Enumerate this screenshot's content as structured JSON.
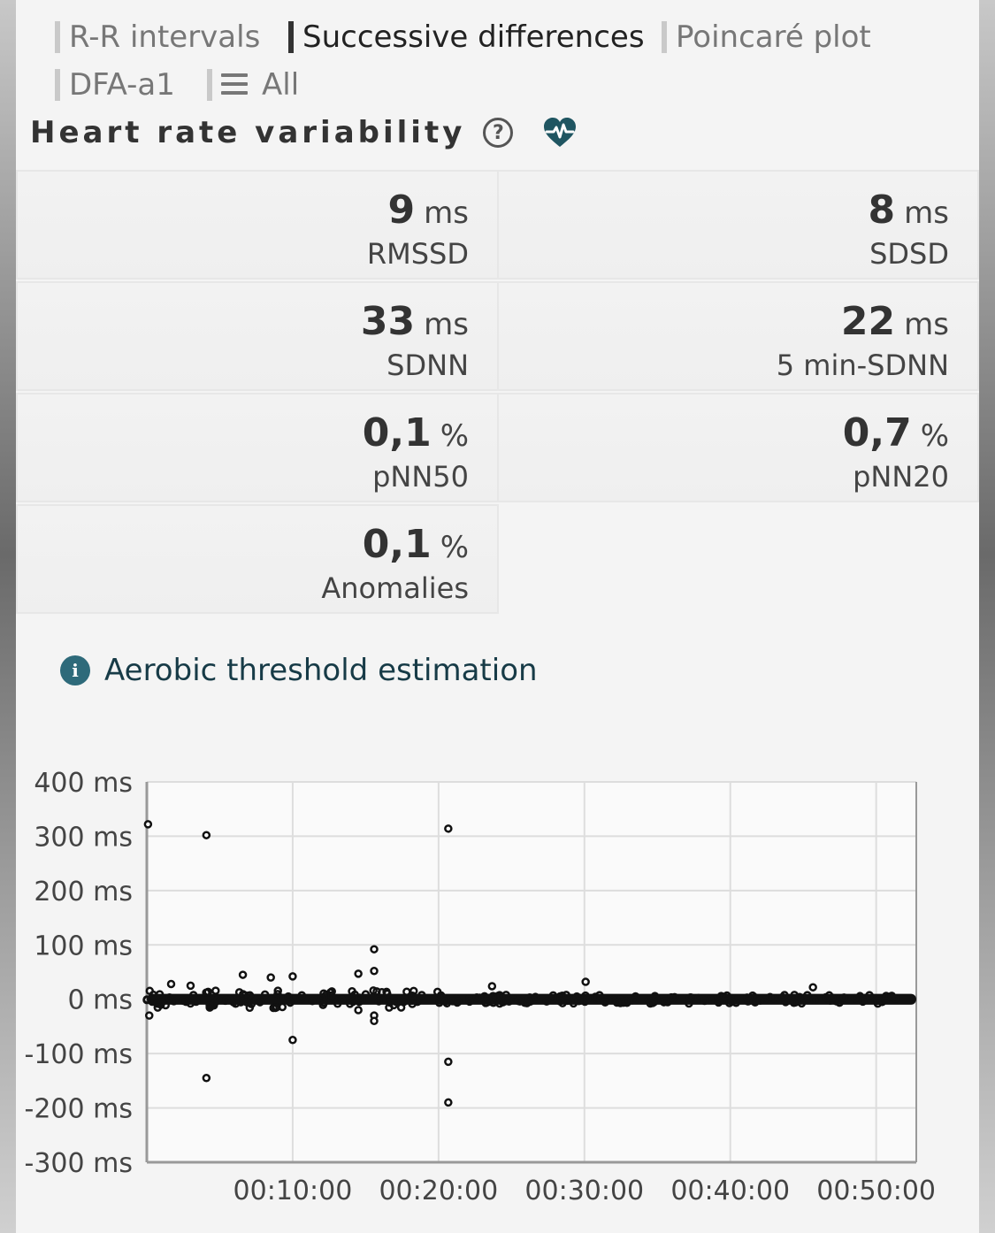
{
  "tabs": [
    {
      "label": "R-R intervals",
      "active": false
    },
    {
      "label": "Successive differences",
      "active": true
    },
    {
      "label": "Poincaré plot",
      "active": false
    },
    {
      "label": "DFA-a1",
      "active": false
    },
    {
      "label": "All",
      "active": false,
      "icon": "menu-icon"
    }
  ],
  "header": {
    "title": "Heart rate variability",
    "help_symbol": "?",
    "heart_icon": "heart-pulse-icon",
    "icon_color": "#1f5561"
  },
  "metrics": [
    {
      "value": "9",
      "unit": "ms",
      "label": "RMSSD"
    },
    {
      "value": "8",
      "unit": "ms",
      "label": "SDSD"
    },
    {
      "value": "33",
      "unit": "ms",
      "label": "SDNN"
    },
    {
      "value": "22",
      "unit": "ms",
      "label": "5 min-SDNN"
    },
    {
      "value": "0,1",
      "unit": "%",
      "label": "pNN50"
    },
    {
      "value": "0,7",
      "unit": "%",
      "label": "pNN20"
    },
    {
      "value": "0,1",
      "unit": "%",
      "label": "Anomalies"
    }
  ],
  "aerobic": {
    "info_symbol": "i",
    "label": "Aerobic threshold estimation",
    "icon_color": "#2e6a7a"
  },
  "chart_data": {
    "type": "scatter",
    "title": "",
    "xlabel": "",
    "ylabel": "",
    "ylim": [
      -300,
      400
    ],
    "xlim_seconds": [
      0,
      3165
    ],
    "yticks": [
      "400 ms",
      "300 ms",
      "200 ms",
      "100 ms",
      "0 ms",
      "-100 ms",
      "-200 ms",
      "-300 ms"
    ],
    "xticks": [
      "00:10:00",
      "00:20:00",
      "00:30:00",
      "00:40:00",
      "00:50:00"
    ],
    "grid": true,
    "dense_band": {
      "x_start": "00:00:00",
      "x_end": "00:52:45",
      "y_min": -10,
      "y_max": 10
    },
    "outliers": [
      {
        "x": "00:00:05",
        "y": 322
      },
      {
        "x": "00:04:05",
        "y": 302
      },
      {
        "x": "00:20:40",
        "y": 314
      },
      {
        "x": "00:15:35",
        "y": 92
      },
      {
        "x": "00:15:35",
        "y": 52
      },
      {
        "x": "00:14:30",
        "y": 47
      },
      {
        "x": "00:10:00",
        "y": 42
      },
      {
        "x": "00:08:30",
        "y": 40
      },
      {
        "x": "00:06:35",
        "y": 45
      },
      {
        "x": "00:30:05",
        "y": 32
      },
      {
        "x": "00:23:40",
        "y": 24
      },
      {
        "x": "00:45:40",
        "y": 22
      },
      {
        "x": "00:01:40",
        "y": 28
      },
      {
        "x": "00:03:00",
        "y": 25
      },
      {
        "x": "00:00:10",
        "y": -30
      },
      {
        "x": "00:10:00",
        "y": -75
      },
      {
        "x": "00:04:05",
        "y": -145
      },
      {
        "x": "00:20:40",
        "y": -115
      },
      {
        "x": "00:20:40",
        "y": -190
      },
      {
        "x": "00:15:35",
        "y": -30
      },
      {
        "x": "00:15:35",
        "y": -40
      },
      {
        "x": "00:14:30",
        "y": -20
      }
    ]
  }
}
